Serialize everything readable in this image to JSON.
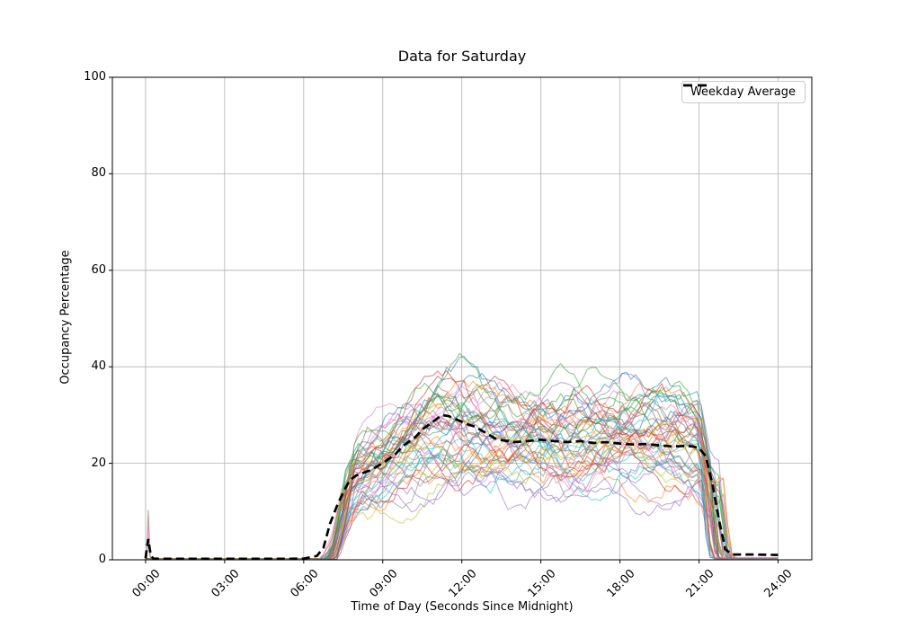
{
  "figure": {
    "background": "#ffffff",
    "spine_color": "#000000",
    "grid_color": "#b0b0b0"
  },
  "chart_data": {
    "type": "line",
    "title": "Data for Saturday",
    "xlabel": "Time of Day (Seconds Since Midnight)",
    "ylabel": "Occupancy Percentage",
    "ylim": [
      0,
      100
    ],
    "xlim_hours": [
      -1.26,
      25.28
    ],
    "grid": true,
    "y_ticks": [
      0,
      20,
      40,
      60,
      80,
      100
    ],
    "x_ticks": [
      {
        "hour": 0,
        "label": "00:00"
      },
      {
        "hour": 3,
        "label": "03:00"
      },
      {
        "hour": 6,
        "label": "06:00"
      },
      {
        "hour": 9,
        "label": "09:00"
      },
      {
        "hour": 12,
        "label": "12:00"
      },
      {
        "hour": 15,
        "label": "15:00"
      },
      {
        "hour": 18,
        "label": "18:00"
      },
      {
        "hour": 21,
        "label": "21:00"
      },
      {
        "hour": 24,
        "label": "24:00"
      }
    ],
    "legend": {
      "location": "upper right",
      "entries": [
        {
          "label": "Weekday Average",
          "color": "#000000",
          "style": "dashed"
        }
      ]
    },
    "series": [
      {
        "name": "Weekday Average",
        "role": "average",
        "color": "#000000",
        "line_style": "dashed",
        "line_width": 2.7,
        "x_hours": [
          0,
          0.05,
          0.1,
          0.2,
          0.3,
          1,
          2,
          3,
          4,
          5,
          6,
          6.5,
          6.75,
          7,
          7.25,
          7.5,
          7.75,
          8,
          8.25,
          8.5,
          9,
          9.25,
          9.5,
          9.75,
          10,
          10.25,
          10.5,
          10.75,
          11,
          11.25,
          11.5,
          11.75,
          12,
          12.25,
          12.5,
          12.75,
          13,
          13.25,
          13.5,
          14,
          14.5,
          15,
          15.5,
          16,
          16.5,
          17,
          17.5,
          18,
          18.5,
          19,
          19.5,
          20,
          20.5,
          20.75,
          21,
          21.25,
          21.5,
          21.75,
          22,
          22.25,
          23,
          24
        ],
        "values": [
          0.3,
          2.5,
          4.3,
          0.8,
          0.25,
          0.2,
          0.2,
          0.2,
          0.2,
          0.2,
          0.25,
          0.8,
          2.5,
          7.5,
          11,
          14,
          16.5,
          17.5,
          18,
          18.5,
          20,
          21,
          22,
          23.5,
          24.5,
          25.5,
          27,
          28,
          29,
          30,
          29.8,
          29.2,
          28.6,
          28,
          27.6,
          26.8,
          26,
          25.2,
          24.8,
          24.4,
          24.6,
          24.9,
          24.6,
          24.4,
          24.6,
          24.2,
          24.4,
          24.1,
          23.9,
          24.0,
          23.7,
          23.5,
          23.6,
          23.5,
          23.2,
          21.5,
          16,
          8.5,
          2.2,
          1.1,
          1.1,
          1.0
        ]
      }
    ],
    "individual_lines": {
      "description": "approx. 48 individual Saturday occupancy traces (one per day), thin semi-transparent matplotlib tab10 colors; flat near 0 from 00:15-06:30, jagged band ~12-40% between 07:00 and 21:30 (peaks to ~50% near noon), dropping to ~0 by 22:00",
      "count": 48,
      "alpha": 0.55,
      "line_width": 1.1,
      "colors": [
        "#1f77b4",
        "#ff7f0e",
        "#2ca02c",
        "#d62728",
        "#9467bd",
        "#8c564b",
        "#e377c2",
        "#7f7f7f",
        "#bcbd22",
        "#17becf"
      ],
      "seed": 11,
      "sample_step_hours": 0.1667,
      "onset_hour_range": [
        6.5,
        7.3
      ],
      "drop_hour_range": [
        21.05,
        21.95
      ],
      "flat_residual_range": [
        0,
        0.25
      ],
      "end_residual_range": [
        0,
        0.4
      ],
      "scale_range": [
        0.72,
        1.45
      ],
      "envelope": {
        "hours": [
          6.4,
          7.0,
          7.5,
          8.0,
          8.5,
          9.0,
          10.0,
          11.0,
          11.5,
          12.0,
          12.5,
          13.0,
          14.0,
          15.0,
          16.0,
          17.0,
          18.0,
          19.0,
          20.0,
          21.0,
          21.5
        ],
        "center": [
          0.4,
          5,
          11,
          16,
          17,
          18,
          21,
          24,
          25,
          25,
          24,
          23,
          22,
          22.5,
          22,
          22.5,
          23,
          22.5,
          22.5,
          21.5,
          12
        ],
        "halfwidth": [
          0.4,
          3,
          5,
          6,
          6.5,
          7,
          8,
          9,
          10,
          10,
          10,
          9.5,
          8.5,
          8.5,
          8.5,
          8.5,
          8.5,
          8.5,
          8,
          7,
          5
        ]
      },
      "early_spikes": [
        {
          "line_index": 5,
          "peak_hour": 0.1,
          "peak_value": 10.2
        },
        {
          "line_index": 6,
          "peak_hour": 0.1,
          "peak_value": 7.0
        },
        {
          "line_index": 7,
          "peak_hour": 0.1,
          "peak_value": 4.5
        }
      ]
    }
  }
}
